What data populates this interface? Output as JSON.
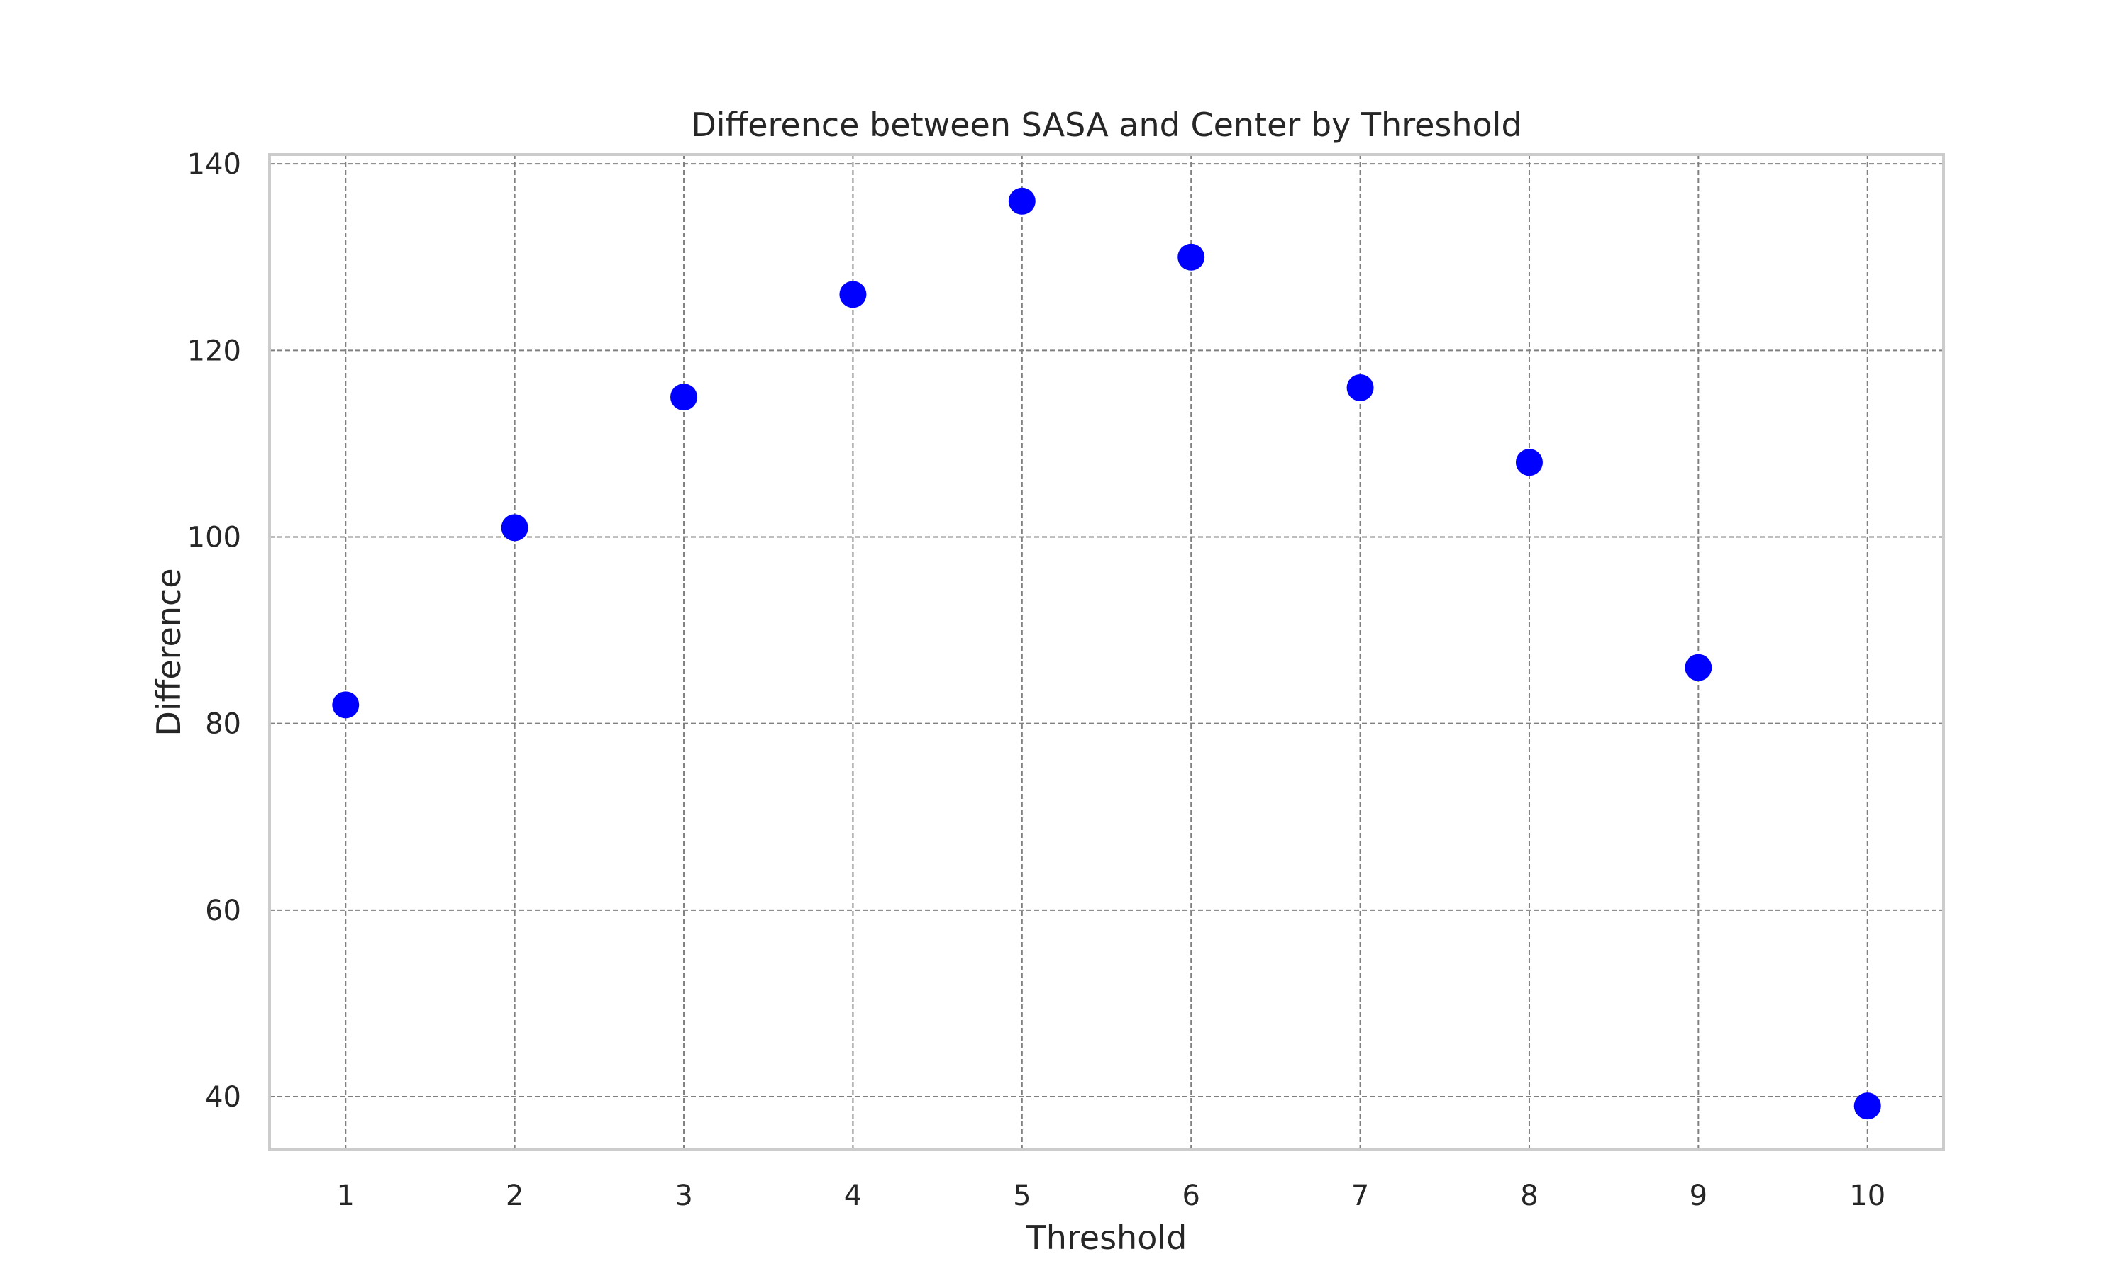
{
  "chart_data": {
    "type": "scatter",
    "title": "Difference between SASA and Center by Threshold",
    "xlabel": "Threshold",
    "ylabel": "Difference",
    "x": [
      1,
      2,
      3,
      4,
      5,
      6,
      7,
      8,
      9,
      10
    ],
    "y": [
      82,
      101,
      115,
      126,
      136,
      130,
      116,
      108,
      86,
      39
    ],
    "xlim": [
      0.55,
      10.45
    ],
    "ylim": [
      34.3,
      141
    ],
    "xticks": [
      1,
      2,
      3,
      4,
      5,
      6,
      7,
      8,
      9,
      10
    ],
    "yticks": [
      40,
      60,
      80,
      100,
      120,
      140
    ],
    "marker_color": "#0000ff",
    "grid": true,
    "grid_style": "dashed",
    "legend": "none"
  }
}
